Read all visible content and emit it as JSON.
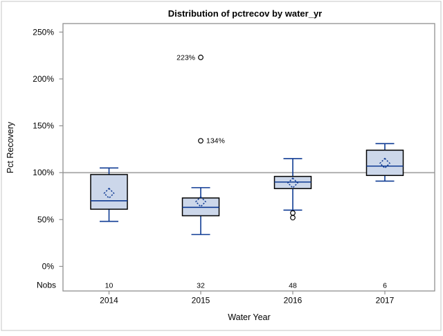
{
  "chart_data": {
    "type": "box",
    "title": "Distribution of pctrecov by water_yr",
    "xlabel": "Water Year",
    "ylabel": "Pct Recovery",
    "nobs_label": "Nobs",
    "y_ticks": [
      "0%",
      "50%",
      "100%",
      "150%",
      "200%",
      "250%"
    ],
    "y_tick_values": [
      0,
      50,
      100,
      150,
      200,
      250
    ],
    "ylim": [
      -26,
      259
    ],
    "reference_line": 100,
    "grid": "off",
    "legend": "none",
    "categories": [
      "2014",
      "2015",
      "2016",
      "2017"
    ],
    "nobs": [
      10,
      32,
      48,
      6
    ],
    "series": [
      {
        "category": "2014",
        "n": 10,
        "whisker_low": 48,
        "q1": 61,
        "median": 70,
        "q3": 98,
        "whisker_high": 105,
        "mean": 78,
        "outliers": []
      },
      {
        "category": "2015",
        "n": 32,
        "whisker_low": 34,
        "q1": 54,
        "median": 63,
        "q3": 73,
        "whisker_high": 84,
        "mean": 69,
        "outliers": [
          {
            "value": 223,
            "label": "223%",
            "label_side": "left"
          },
          {
            "value": 134,
            "label": "134%",
            "label_side": "right"
          }
        ]
      },
      {
        "category": "2016",
        "n": 48,
        "whisker_low": 60,
        "q1": 83,
        "median": 90,
        "q3": 96,
        "whisker_high": 115,
        "mean": 89,
        "outliers": [
          {
            "value": 57
          },
          {
            "value": 52
          }
        ]
      },
      {
        "category": "2017",
        "n": 6,
        "whisker_low": 91,
        "q1": 97,
        "median": 107,
        "q3": 124,
        "whisker_high": 131,
        "mean": 110,
        "outliers": []
      }
    ],
    "colors": {
      "box_fill": "#ccd7ea",
      "box_border": "#000000",
      "line": "#0e3a93",
      "reference_line": "#a6a6a6",
      "frame": "#8f8f8f",
      "outer_border": "#c6c6c6",
      "text": "#000000",
      "background": "#ffffff"
    }
  }
}
